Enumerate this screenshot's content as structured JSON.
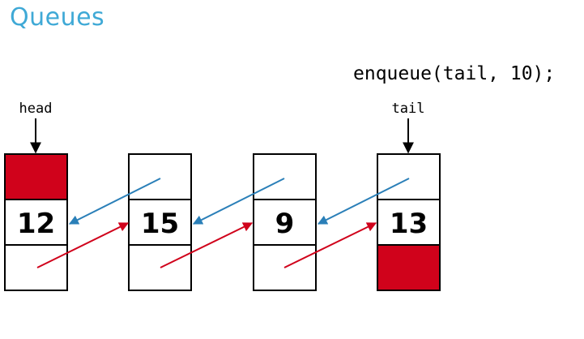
{
  "title": "Queues",
  "code": "enqueue(tail, 10);",
  "labels": {
    "head": "head",
    "tail": "tail"
  },
  "nodes": [
    {
      "value": "12",
      "prev_null": true,
      "next_null": false
    },
    {
      "value": "15",
      "prev_null": false,
      "next_null": false
    },
    {
      "value": "9",
      "prev_null": false,
      "next_null": false
    },
    {
      "value": "13",
      "prev_null": false,
      "next_null": true
    }
  ],
  "colors": {
    "title": "#3fa9d6",
    "null_fill": "#d0021b",
    "prev_arrow": "#2a7fb8",
    "next_arrow": "#d0021b",
    "box_stroke": "#000000"
  }
}
